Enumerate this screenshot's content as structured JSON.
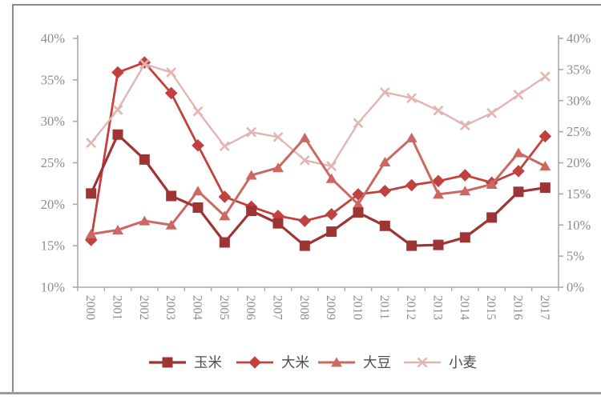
{
  "chart_data": {
    "type": "line",
    "title": "",
    "xlabel": "",
    "ylabel": "",
    "grid": false,
    "legend_position": "bottom",
    "categories": [
      "2000",
      "2001",
      "2002",
      "2003",
      "2004",
      "2005",
      "2006",
      "2007",
      "2008",
      "2009",
      "2010",
      "2011",
      "2012",
      "2013",
      "2014",
      "2015",
      "2016",
      "2017"
    ],
    "series": [
      {
        "name": "玉米",
        "marker": "square",
        "color": "#9e3434",
        "line_width": 3.2,
        "values": [
          21.3,
          28.4,
          25.4,
          21.0,
          19.6,
          15.4,
          19.2,
          17.7,
          15.0,
          16.7,
          19.0,
          17.4,
          15.0,
          15.1,
          16.0,
          18.4,
          21.5,
          22.0
        ]
      },
      {
        "name": "大米",
        "marker": "diamond",
        "color": "#c0413d",
        "line_width": 2.8,
        "values": [
          15.7,
          35.9,
          37.1,
          33.4,
          27.1,
          20.9,
          19.7,
          18.6,
          18.0,
          18.8,
          21.2,
          21.6,
          22.3,
          22.8,
          23.5,
          22.6,
          24.0,
          28.2
        ]
      },
      {
        "name": "大豆",
        "marker": "triangle",
        "color": "#cb6862",
        "line_width": 3.0,
        "values": [
          16.4,
          16.9,
          18.0,
          17.5,
          21.6,
          18.6,
          23.5,
          24.4,
          28.0,
          23.1,
          20.0,
          25.1,
          28.0,
          21.2,
          21.6,
          22.4,
          26.2,
          24.6
        ]
      },
      {
        "name": "小麦",
        "marker": "x",
        "color": "#e2b5b2",
        "line_width": 2.4,
        "values": [
          27.4,
          31.4,
          36.9,
          35.9,
          31.2,
          27.0,
          28.7,
          28.1,
          25.3,
          24.6,
          29.8,
          33.5,
          32.8,
          31.3,
          29.5,
          31.0,
          33.2,
          35.4
        ]
      }
    ],
    "left_axis": {
      "labels": [
        "40%",
        "35%",
        "30%",
        "25%",
        "20%",
        "15%",
        "10%"
      ],
      "values": [
        40,
        35,
        30,
        25,
        20,
        15,
        10
      ],
      "min": 10,
      "max": 40
    },
    "right_axis": {
      "labels": [
        "40%",
        "35%",
        "30%",
        "25%",
        "20%",
        "15%",
        "10%",
        "5%",
        "0%"
      ],
      "values": [
        40,
        35,
        30,
        25,
        20,
        15,
        10,
        5,
        0
      ],
      "min": 0,
      "max": 40
    },
    "axis_text_color": "#8c8c8c",
    "axis_line_color": "#a9a9a9",
    "legend_text_color": "#4d4d4d"
  }
}
